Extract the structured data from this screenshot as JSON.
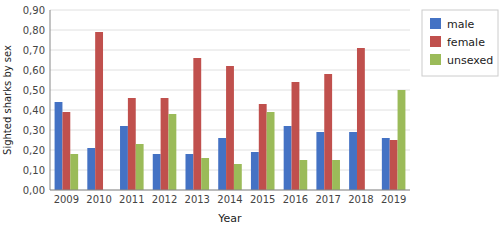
{
  "chart_data": {
    "type": "bar",
    "xlabel": "Year",
    "ylabel": "Sighted sharks by sex",
    "categories": [
      "2009",
      "2010",
      "2011",
      "2012",
      "2013",
      "2014",
      "2015",
      "2016",
      "2017",
      "2018",
      "2019"
    ],
    "series": [
      {
        "name": "male",
        "color": "#4472C4",
        "values": [
          0.44,
          0.21,
          0.32,
          0.18,
          0.18,
          0.26,
          0.19,
          0.32,
          0.29,
          0.29,
          0.26
        ]
      },
      {
        "name": "female",
        "color": "#C0504D",
        "values": [
          0.39,
          0.79,
          0.46,
          0.46,
          0.66,
          0.62,
          0.43,
          0.54,
          0.58,
          0.71,
          0.25
        ]
      },
      {
        "name": "unsexed",
        "color": "#9BBB59",
        "values": [
          0.18,
          0.0,
          0.23,
          0.38,
          0.16,
          0.13,
          0.39,
          0.15,
          0.15,
          0.0,
          0.5
        ]
      }
    ],
    "ylim": [
      0.0,
      0.9
    ],
    "yticks": [
      {
        "value": 0.0,
        "label": "0,00"
      },
      {
        "value": 0.1,
        "label": "0,10"
      },
      {
        "value": 0.2,
        "label": "0,20"
      },
      {
        "value": 0.3,
        "label": "0,30"
      },
      {
        "value": 0.4,
        "label": "0,40"
      },
      {
        "value": 0.5,
        "label": "0,50"
      },
      {
        "value": 0.6,
        "label": "0,60"
      },
      {
        "value": 0.7,
        "label": "0,70"
      },
      {
        "value": 0.8,
        "label": "0,80"
      },
      {
        "value": 0.9,
        "label": "0,90"
      }
    ],
    "grid": true,
    "legend": "right"
  }
}
